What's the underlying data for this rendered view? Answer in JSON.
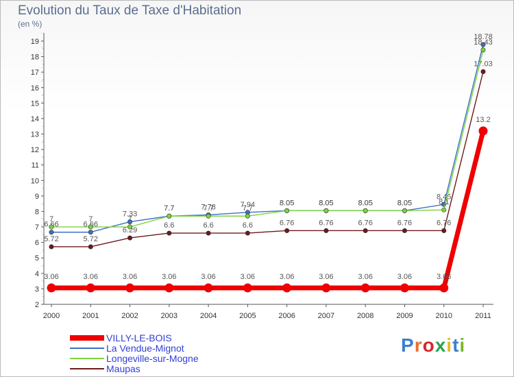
{
  "chart_data": {
    "type": "line",
    "title": "Evolution du Taux de Taxe d'Habitation",
    "subtitle": "(en %)",
    "x": [
      "2000",
      "2001",
      "2002",
      "2003",
      "2004",
      "2005",
      "2006",
      "2007",
      "2008",
      "2009",
      "2010",
      "2011"
    ],
    "ylim": [
      2,
      19
    ],
    "yticks": [
      2,
      3,
      4,
      5,
      6,
      7,
      8,
      9,
      10,
      11,
      12,
      13,
      14,
      15,
      16,
      17,
      18,
      19
    ],
    "grid": false,
    "legend_position": "bottom-left",
    "series": [
      {
        "name": "Maupas",
        "color": "#6b1a1a",
        "values": [
          5.72,
          5.72,
          6.29,
          6.6,
          6.6,
          6.6,
          6.76,
          6.76,
          6.76,
          6.76,
          6.76,
          17.03
        ],
        "labels": [
          "5.72",
          "5.72",
          "6.29",
          "6.6",
          "6.6",
          "6.6",
          "6.76",
          "6.76",
          "6.76",
          "6.76",
          "6.76",
          "17.03"
        ]
      },
      {
        "name": "La Vendue-Mignot",
        "color": "#3d6fc4",
        "values": [
          6.66,
          6.66,
          7.33,
          7.7,
          7.78,
          7.94,
          8.05,
          8.05,
          8.05,
          8.05,
          8.45,
          18.78
        ],
        "labels": [
          "6.66",
          "6.66",
          "7.33",
          "7.7",
          "7.78",
          "7.94",
          "8.05",
          "8.05",
          "8.05",
          "8.05",
          "8.45",
          "18.78"
        ]
      },
      {
        "name": "Longeville-sur-Mogne",
        "color": "#7ed23e",
        "values": [
          7,
          7,
          7,
          7.7,
          7.7,
          7.7,
          8.05,
          8.05,
          8.05,
          8.05,
          8.1,
          18.43
        ],
        "labels": [
          "7",
          "7",
          "7",
          "7.7",
          "7.7",
          "7.7",
          "8.05",
          "8.05",
          "8.05",
          "8.05",
          "8.1",
          "18.43"
        ]
      },
      {
        "name": "VILLY-LE-BOIS",
        "color": "#ee0000",
        "values": [
          3.06,
          3.06,
          3.06,
          3.06,
          3.06,
          3.06,
          3.06,
          3.06,
          3.06,
          3.06,
          3.06,
          13.2
        ],
        "labels": [
          "3.06",
          "3.06",
          "3.06",
          "3.06",
          "3.06",
          "3.06",
          "3.06",
          "3.06",
          "3.06",
          "3.06",
          "3.06",
          "13.2"
        ]
      }
    ],
    "legend": [
      "VILLY-LE-BOIS",
      "La Vendue-Mignot",
      "Longeville-sur-Mogne",
      "Maupas"
    ]
  },
  "brand": {
    "letters": [
      "P",
      "r",
      "o",
      "x",
      "i",
      "t",
      "i"
    ],
    "colors": [
      "#3a7fd0",
      "#e8712a",
      "#d9262b",
      "#2aa34a",
      "#e8b92a",
      "#3a7fd0",
      "#7ab72e"
    ]
  }
}
